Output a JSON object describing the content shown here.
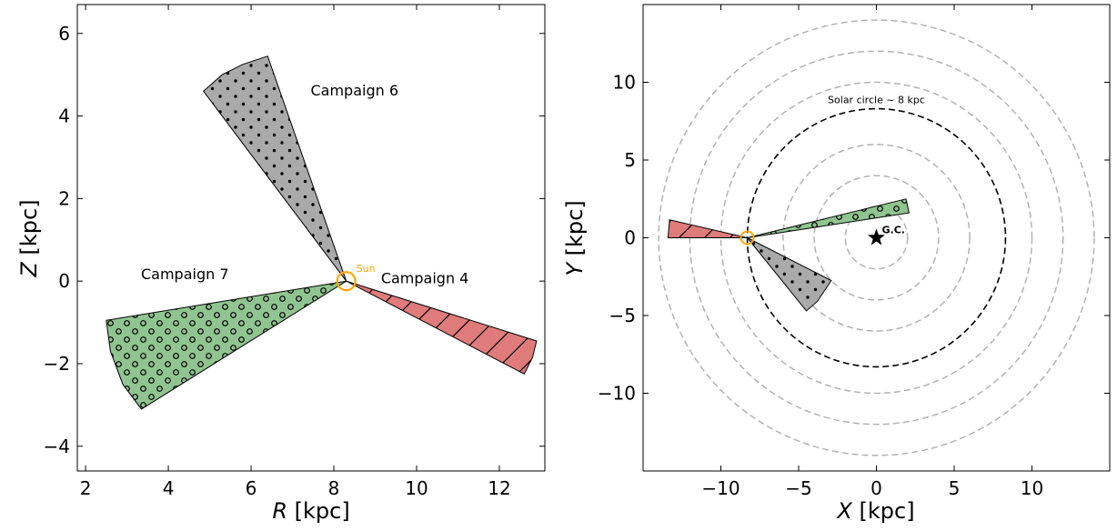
{
  "chart_data": [
    {
      "type": "scatter",
      "panel": "left",
      "xlabel_var": "R",
      "xlabel_unit": " [kpc]",
      "ylabel_var": "Z",
      "ylabel_unit": " [kpc]",
      "xlim": [
        1.8,
        13.1
      ],
      "ylim": [
        -4.6,
        6.7
      ],
      "xticks": [
        2,
        4,
        6,
        8,
        10,
        12
      ],
      "yticks": [
        -4,
        -2,
        0,
        2,
        4,
        6
      ],
      "sun": {
        "x": 8.3,
        "y": 0.0,
        "label": "Sun"
      },
      "wedges": [
        {
          "name": "Campaign 6",
          "label": "Campaign 6",
          "label_pos": [
            8.5,
            4.5
          ],
          "color": "#aaaaaa",
          "hatch": "dots",
          "vertices": [
            [
              8.3,
              0.0
            ],
            [
              4.85,
              4.6
            ],
            [
              5.3,
              5.0
            ],
            [
              5.8,
              5.25
            ],
            [
              6.4,
              5.45
            ]
          ]
        },
        {
          "name": "Campaign 7",
          "label": "Campaign 7",
          "label_pos": [
            4.4,
            0.05
          ],
          "color": "#90c490",
          "hatch": "circles",
          "vertices": [
            [
              8.3,
              0.0
            ],
            [
              2.5,
              -0.95
            ],
            [
              2.6,
              -1.7
            ],
            [
              2.9,
              -2.5
            ],
            [
              3.35,
              -3.1
            ]
          ]
        },
        {
          "name": "Campaign 4",
          "label": "Campaign 4",
          "label_pos": [
            10.2,
            -0.05
          ],
          "color": "#e07b7b",
          "hatch": "diagonal",
          "vertices": [
            [
              8.3,
              0.0
            ],
            [
              12.9,
              -1.45
            ],
            [
              12.8,
              -1.85
            ],
            [
              12.6,
              -2.25
            ]
          ]
        }
      ]
    },
    {
      "type": "scatter",
      "panel": "right",
      "xlabel_var": "X",
      "xlabel_unit": " [kpc]",
      "ylabel_var": "Y",
      "ylabel_unit": " [kpc]",
      "xlim": [
        -15,
        15
      ],
      "ylim": [
        -15,
        15
      ],
      "xticks": [
        -10,
        -5,
        0,
        5,
        10
      ],
      "yticks": [
        -10,
        -5,
        0,
        5,
        10
      ],
      "circles_kpc": [
        2,
        4,
        6,
        10,
        12,
        14
      ],
      "solar_circle": {
        "radius": 8.3,
        "label": "Solar circle ~ 8 kpc"
      },
      "gc": {
        "x": 0,
        "y": 0,
        "label": "G.C."
      },
      "sun": {
        "x": -8.3,
        "y": 0.0
      },
      "wedges": [
        {
          "name": "Campaign 4",
          "color": "#e07b7b",
          "hatch": "diagonal",
          "vertices": [
            [
              -8.3,
              0.0
            ],
            [
              -13.3,
              1.15
            ],
            [
              -13.4,
              0.0
            ]
          ]
        },
        {
          "name": "Campaign 6",
          "color": "#aaaaaa",
          "hatch": "dots",
          "vertices": [
            [
              -8.3,
              0.0
            ],
            [
              -4.5,
              -4.7
            ],
            [
              -3.8,
              -4.1
            ],
            [
              -2.9,
              -2.75
            ]
          ]
        },
        {
          "name": "Campaign 7",
          "color": "#90c490",
          "hatch": "circles",
          "vertices": [
            [
              -8.3,
              0.0
            ],
            [
              1.9,
              2.5
            ],
            [
              2.1,
              1.6
            ]
          ]
        }
      ]
    }
  ]
}
